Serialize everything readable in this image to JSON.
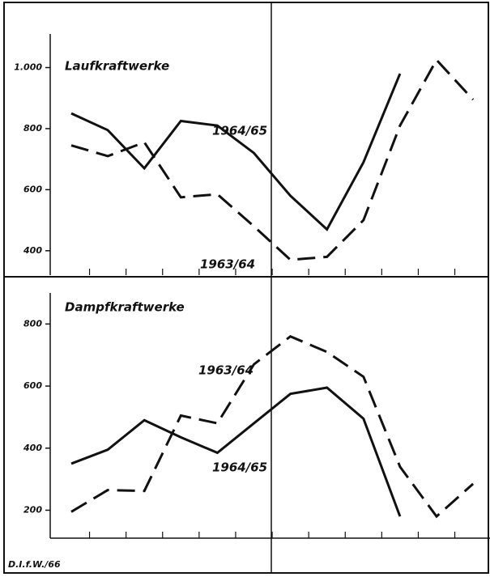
{
  "footer": "D.I.f.W./66",
  "chart_data": [
    {
      "type": "line",
      "title": "Laufkraftwerke",
      "categories": [
        null,
        null,
        null,
        null,
        null,
        null,
        null,
        null,
        null,
        null,
        null,
        null
      ],
      "series": [
        {
          "name": "1964/65",
          "color": "#111111",
          "style": "solid",
          "values": [
            850,
            795,
            670,
            825,
            810,
            720,
            580,
            470,
            690,
            980,
            null,
            null
          ]
        },
        {
          "name": "1963/64",
          "color": "#111111",
          "style": "dashed",
          "values": [
            745,
            710,
            755,
            575,
            585,
            480,
            370,
            380,
            500,
            810,
            1025,
            895
          ]
        }
      ],
      "ylim": [
        320,
        1110
      ],
      "yticks": [
        400,
        600,
        800,
        {
          "value": 1000,
          "label": "1.000"
        }
      ]
    },
    {
      "type": "line",
      "title": "Dampfkraftwerke",
      "categories": [
        null,
        null,
        null,
        null,
        null,
        null,
        null,
        null,
        null,
        null,
        null,
        null
      ],
      "series": [
        {
          "name": "1963/64",
          "color": "#111111",
          "style": "dashed",
          "values": [
            195,
            265,
            262,
            505,
            480,
            670,
            760,
            710,
            630,
            340,
            180,
            285
          ]
        },
        {
          "name": "1964/65",
          "color": "#111111",
          "style": "solid",
          "values": [
            350,
            395,
            490,
            435,
            385,
            480,
            575,
            595,
            495,
            180,
            null,
            null
          ]
        }
      ],
      "ylim": [
        110,
        900
      ],
      "yticks": [
        200,
        400,
        600,
        800
      ]
    }
  ]
}
